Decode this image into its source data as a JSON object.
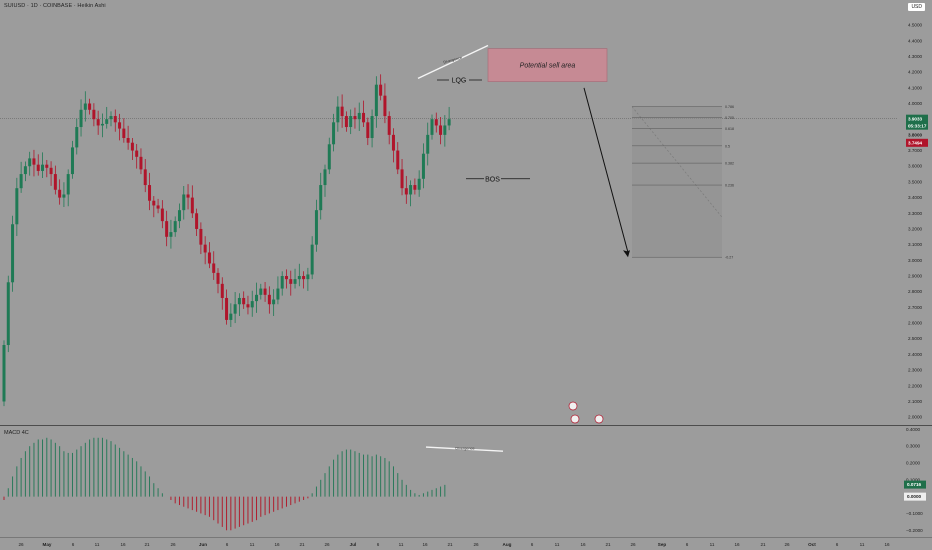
{
  "header": {
    "symbol_line": "SUIUSD · 1D · COINBASE · Heikin Ashi",
    "currency": "USD"
  },
  "colors": {
    "background": "#9c9c9c",
    "bull": "#1f7a55",
    "bear": "#b0152b",
    "macd_pos": "#2a7a5a",
    "macd_neg": "#b01e2e",
    "sell_zone": "#c98a94",
    "price_tag": "#1f6f4a",
    "bear_tag": "#b0152b"
  },
  "chart_data": [
    {
      "type": "candlestick",
      "style": "Heikin Ashi",
      "y_axis": {
        "ticks": [
          "4.6000",
          "4.5000",
          "4.4000",
          "4.3000",
          "4.2000",
          "4.1000",
          "4.0000",
          "3.7000",
          "3.6000",
          "3.5000",
          "3.4000",
          "3.3000",
          "3.2000",
          "3.1000",
          "3.0000",
          "2.9000",
          "2.8000",
          "2.7000",
          "2.6000",
          "2.5000",
          "2.4000",
          "2.3000",
          "2.2000",
          "2.1000",
          "2.0000"
        ],
        "range": [
          1.95,
          4.66
        ],
        "scale": "linear"
      },
      "x_axis": {
        "ticks": [
          "26",
          "May",
          "6",
          "11",
          "16",
          "21",
          "26",
          "Jun",
          "6",
          "11",
          "16",
          "21",
          "26",
          "Jul",
          "6",
          "11",
          "16",
          "21",
          "26",
          "Aug",
          "6",
          "11",
          "16",
          "21",
          "26",
          "Sep",
          "6",
          "11",
          "16",
          "21",
          "26",
          "Oct",
          "6",
          "11",
          "16"
        ]
      },
      "price_tags": [
        {
          "label": "3.9033",
          "value": 3.9033,
          "type": "last"
        },
        {
          "label": "05:33:17",
          "value": 3.9033,
          "type": "countdown"
        },
        {
          "label": "3.8000",
          "value": 3.8,
          "type": "level"
        },
        {
          "label": "3.7494",
          "value": 3.7494,
          "type": "bear"
        }
      ],
      "fib_levels": [
        {
          "label": "0.786",
          "value": 3.98
        },
        {
          "label": "0.705",
          "value": 3.91
        },
        {
          "label": "0.618",
          "value": 3.84
        },
        {
          "label": "0.5",
          "value": 3.73
        },
        {
          "label": "0.382",
          "value": 3.62
        },
        {
          "label": "0.236",
          "value": 3.48
        },
        {
          "label": "-0.27",
          "value": 3.02
        }
      ],
      "annotations": {
        "sell_zone": "Potential sell area",
        "lqg": "LQG",
        "bos": "BOS",
        "divergence": "Divergence"
      },
      "series": [
        {
          "o": 2.1,
          "c": 2.46
        },
        {
          "o": 2.46,
          "c": 2.86
        },
        {
          "o": 2.86,
          "c": 3.23
        },
        {
          "o": 3.23,
          "c": 3.46
        },
        {
          "o": 3.46,
          "c": 3.55
        },
        {
          "o": 3.55,
          "c": 3.6
        },
        {
          "o": 3.6,
          "c": 3.65
        },
        {
          "o": 3.65,
          "c": 3.61
        },
        {
          "o": 3.61,
          "c": 3.57
        },
        {
          "o": 3.57,
          "c": 3.61
        },
        {
          "o": 3.61,
          "c": 3.59
        },
        {
          "o": 3.59,
          "c": 3.55
        },
        {
          "o": 3.55,
          "c": 3.45
        },
        {
          "o": 3.45,
          "c": 3.4
        },
        {
          "o": 3.4,
          "c": 3.42
        },
        {
          "o": 3.42,
          "c": 3.55
        },
        {
          "o": 3.55,
          "c": 3.72
        },
        {
          "o": 3.72,
          "c": 3.85
        },
        {
          "o": 3.85,
          "c": 3.96
        },
        {
          "o": 3.96,
          "c": 4.0
        },
        {
          "o": 4.0,
          "c": 3.96
        },
        {
          "o": 3.96,
          "c": 3.9
        },
        {
          "o": 3.9,
          "c": 3.86
        },
        {
          "o": 3.86,
          "c": 3.87
        },
        {
          "o": 3.87,
          "c": 3.9
        },
        {
          "o": 3.9,
          "c": 3.92
        },
        {
          "o": 3.92,
          "c": 3.88
        },
        {
          "o": 3.88,
          "c": 3.84
        },
        {
          "o": 3.84,
          "c": 3.78
        },
        {
          "o": 3.78,
          "c": 3.75
        },
        {
          "o": 3.75,
          "c": 3.7
        },
        {
          "o": 3.7,
          "c": 3.66
        },
        {
          "o": 3.66,
          "c": 3.58
        },
        {
          "o": 3.58,
          "c": 3.48
        },
        {
          "o": 3.48,
          "c": 3.38
        },
        {
          "o": 3.38,
          "c": 3.35
        },
        {
          "o": 3.35,
          "c": 3.33
        },
        {
          "o": 3.33,
          "c": 3.25
        },
        {
          "o": 3.25,
          "c": 3.15
        },
        {
          "o": 3.15,
          "c": 3.18
        },
        {
          "o": 3.18,
          "c": 3.25
        },
        {
          "o": 3.25,
          "c": 3.32
        },
        {
          "o": 3.32,
          "c": 3.42
        },
        {
          "o": 3.42,
          "c": 3.4
        },
        {
          "o": 3.4,
          "c": 3.3
        },
        {
          "o": 3.3,
          "c": 3.2
        },
        {
          "o": 3.2,
          "c": 3.1
        },
        {
          "o": 3.1,
          "c": 3.05
        },
        {
          "o": 3.05,
          "c": 2.98
        },
        {
          "o": 2.98,
          "c": 2.92
        },
        {
          "o": 2.92,
          "c": 2.85
        },
        {
          "o": 2.85,
          "c": 2.76
        },
        {
          "o": 2.76,
          "c": 2.62
        },
        {
          "o": 2.62,
          "c": 2.66
        },
        {
          "o": 2.66,
          "c": 2.72
        },
        {
          "o": 2.72,
          "c": 2.76
        },
        {
          "o": 2.76,
          "c": 2.72
        },
        {
          "o": 2.72,
          "c": 2.7
        },
        {
          "o": 2.7,
          "c": 2.74
        },
        {
          "o": 2.74,
          "c": 2.78
        },
        {
          "o": 2.78,
          "c": 2.82
        },
        {
          "o": 2.82,
          "c": 2.78
        },
        {
          "o": 2.78,
          "c": 2.72
        },
        {
          "o": 2.72,
          "c": 2.75
        },
        {
          "o": 2.75,
          "c": 2.82
        },
        {
          "o": 2.82,
          "c": 2.9
        },
        {
          "o": 2.9,
          "c": 2.88
        },
        {
          "o": 2.88,
          "c": 2.85
        },
        {
          "o": 2.85,
          "c": 2.88
        },
        {
          "o": 2.88,
          "c": 2.9
        },
        {
          "o": 2.9,
          "c": 2.88
        },
        {
          "o": 2.88,
          "c": 2.91
        },
        {
          "o": 2.91,
          "c": 3.1
        },
        {
          "o": 3.1,
          "c": 3.32
        },
        {
          "o": 3.32,
          "c": 3.48
        },
        {
          "o": 3.48,
          "c": 3.58
        },
        {
          "o": 3.58,
          "c": 3.74
        },
        {
          "o": 3.74,
          "c": 3.88
        },
        {
          "o": 3.88,
          "c": 3.98
        },
        {
          "o": 3.98,
          "c": 3.92
        },
        {
          "o": 3.92,
          "c": 3.85
        },
        {
          "o": 3.85,
          "c": 3.92
        },
        {
          "o": 3.92,
          "c": 3.9
        },
        {
          "o": 3.9,
          "c": 3.94
        },
        {
          "o": 3.94,
          "c": 3.88
        },
        {
          "o": 3.88,
          "c": 3.78
        },
        {
          "o": 3.78,
          "c": 3.92
        },
        {
          "o": 3.92,
          "c": 4.12
        },
        {
          "o": 4.12,
          "c": 4.05
        },
        {
          "o": 4.05,
          "c": 3.92
        },
        {
          "o": 3.92,
          "c": 3.8
        },
        {
          "o": 3.8,
          "c": 3.7
        },
        {
          "o": 3.7,
          "c": 3.58
        },
        {
          "o": 3.58,
          "c": 3.46
        },
        {
          "o": 3.46,
          "c": 3.42
        },
        {
          "o": 3.42,
          "c": 3.48
        },
        {
          "o": 3.48,
          "c": 3.45
        },
        {
          "o": 3.45,
          "c": 3.52
        },
        {
          "o": 3.52,
          "c": 3.68
        },
        {
          "o": 3.68,
          "c": 3.8
        },
        {
          "o": 3.8,
          "c": 3.9
        },
        {
          "o": 3.9,
          "c": 3.86
        },
        {
          "o": 3.86,
          "c": 3.8
        },
        {
          "o": 3.8,
          "c": 3.86
        },
        {
          "o": 3.86,
          "c": 3.9
        }
      ]
    },
    {
      "type": "bar",
      "title": "MACD 4C",
      "y_axis": {
        "ticks": [
          "0.4000",
          "0.3000",
          "0.2000",
          "0.1000",
          "−0.1000",
          "−0.2000"
        ],
        "range": [
          -0.24,
          0.42
        ]
      },
      "price_tags": [
        {
          "label": "0.0716",
          "value": 0.0716
        },
        {
          "label": "0.0000",
          "value": 0.0
        }
      ],
      "divergence_label": "Divergence",
      "values": [
        -0.02,
        0.05,
        0.12,
        0.18,
        0.23,
        0.27,
        0.3,
        0.32,
        0.34,
        0.34,
        0.35,
        0.34,
        0.32,
        0.3,
        0.27,
        0.26,
        0.26,
        0.28,
        0.3,
        0.32,
        0.34,
        0.35,
        0.35,
        0.35,
        0.34,
        0.33,
        0.31,
        0.29,
        0.27,
        0.25,
        0.23,
        0.21,
        0.18,
        0.15,
        0.12,
        0.08,
        0.05,
        0.02,
        0.0,
        -0.02,
        -0.04,
        -0.05,
        -0.06,
        -0.07,
        -0.08,
        -0.09,
        -0.1,
        -0.11,
        -0.12,
        -0.14,
        -0.16,
        -0.18,
        -0.2,
        -0.2,
        -0.19,
        -0.18,
        -0.17,
        -0.16,
        -0.15,
        -0.14,
        -0.12,
        -0.11,
        -0.1,
        -0.09,
        -0.08,
        -0.07,
        -0.06,
        -0.05,
        -0.04,
        -0.03,
        -0.02,
        -0.01,
        0.02,
        0.06,
        0.1,
        0.14,
        0.18,
        0.22,
        0.25,
        0.27,
        0.28,
        0.28,
        0.27,
        0.26,
        0.25,
        0.25,
        0.24,
        0.25,
        0.24,
        0.23,
        0.21,
        0.18,
        0.14,
        0.1,
        0.07,
        0.04,
        0.02,
        0.01,
        0.02,
        0.03,
        0.04,
        0.05,
        0.06,
        0.07
      ]
    }
  ]
}
